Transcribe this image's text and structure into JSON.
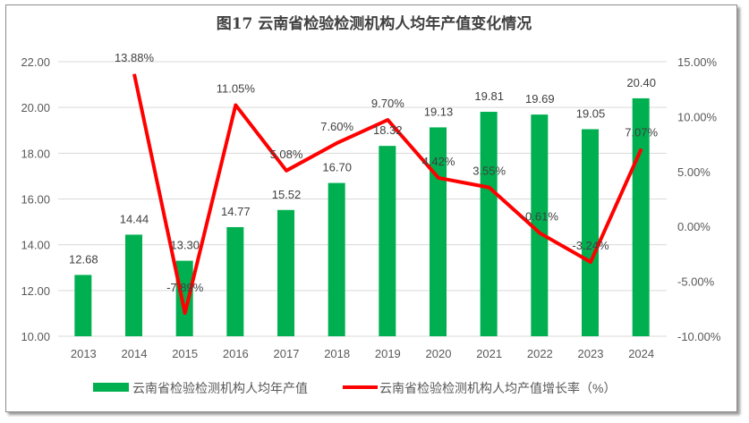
{
  "chart_data": {
    "type": "bar+line",
    "title": "图17  云南省检验检测机构人均年产值变化情况",
    "categories": [
      "2013",
      "2014",
      "2015",
      "2016",
      "2017",
      "2018",
      "2019",
      "2020",
      "2021",
      "2022",
      "2023",
      "2024"
    ],
    "series": [
      {
        "name": "云南省检验检测机构人均年产值",
        "type": "bar",
        "axis": "left",
        "color": "#00b050",
        "values": [
          12.68,
          14.44,
          13.3,
          14.77,
          15.52,
          16.7,
          18.32,
          19.13,
          19.81,
          19.69,
          19.05,
          20.4
        ],
        "labels": [
          "12.68",
          "14.44",
          "13.30",
          "14.77",
          "15.52",
          "16.70",
          "18.32",
          "19.13",
          "19.81",
          "19.69",
          "19.05",
          "20.40"
        ]
      },
      {
        "name": "云南省检验检测机构人均产值增长率（%）",
        "type": "line",
        "axis": "right",
        "color": "#ff0000",
        "values": [
          null,
          13.88,
          -7.89,
          11.05,
          5.08,
          7.6,
          9.7,
          4.42,
          3.55,
          -0.61,
          -3.24,
          7.07
        ],
        "labels": [
          "",
          "13.88%",
          "-7.89%",
          "11.05%",
          "5.08%",
          "7.60%",
          "9.70%",
          "4.42%",
          "3.55%",
          "-0.61%",
          "-3.24%",
          "7.07%"
        ]
      }
    ],
    "y_left": {
      "range": [
        10,
        22
      ],
      "ticks": [
        "10.00",
        "12.00",
        "14.00",
        "16.00",
        "18.00",
        "20.00",
        "22.00"
      ]
    },
    "y_right": {
      "range": [
        -10,
        15
      ],
      "ticks": [
        "-10.00%",
        "-5.00%",
        "0.00%",
        "5.00%",
        "10.00%",
        "15.00%"
      ]
    },
    "grid": true,
    "legend_position": "bottom"
  }
}
